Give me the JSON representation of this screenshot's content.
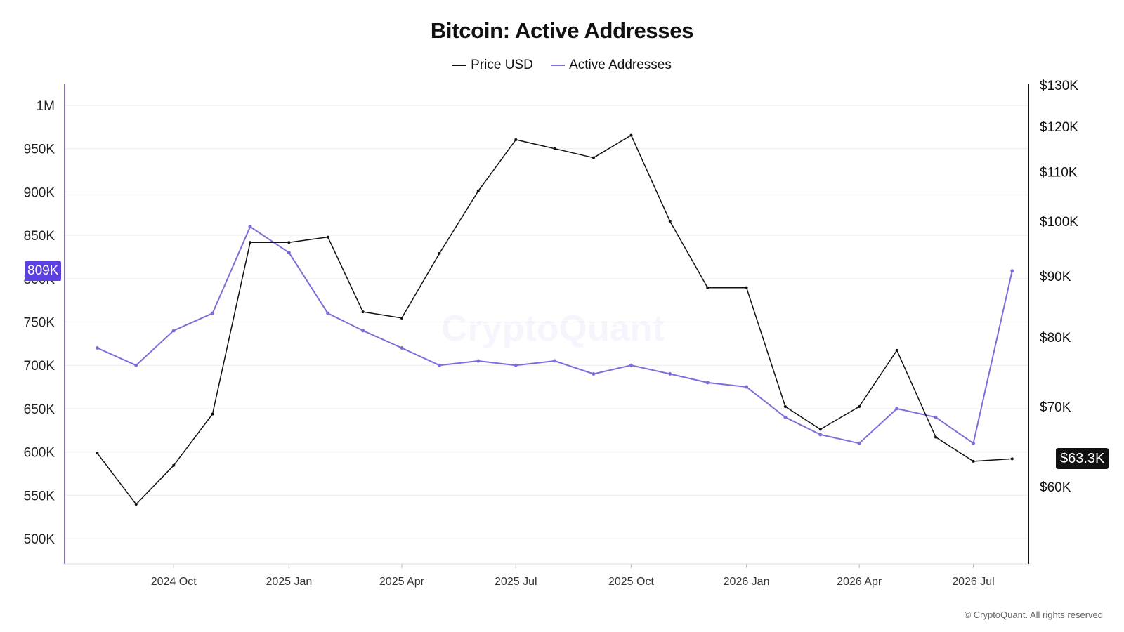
{
  "chart_data": {
    "type": "line",
    "title": "Bitcoin: Active Addresses",
    "legend_position": "top-center",
    "grid": true,
    "x": [
      "2024-08-01",
      "2024-09-01",
      "2024-10-01",
      "2024-11-01",
      "2024-12-01",
      "2025-01-01",
      "2025-02-01",
      "2025-03-01",
      "2025-04-01",
      "2025-05-01",
      "2025-06-01",
      "2025-07-01",
      "2025-08-01",
      "2025-09-01",
      "2025-10-01",
      "2025-11-01",
      "2025-12-01",
      "2026-01-01",
      "2026-02-01",
      "2026-03-01",
      "2026-04-01",
      "2026-05-01",
      "2026-06-01",
      "2026-07-01",
      "2026-08-01"
    ],
    "x_range": [
      "2024-07-06",
      "2026-08-14"
    ],
    "x_tick_labels": [
      {
        "date": "2024-10-01",
        "label": "2024 Oct"
      },
      {
        "date": "2025-01-01",
        "label": "2025 Jan"
      },
      {
        "date": "2025-04-01",
        "label": "2025 Apr"
      },
      {
        "date": "2025-07-01",
        "label": "2025 Jul"
      },
      {
        "date": "2025-10-01",
        "label": "2025 Oct"
      },
      {
        "date": "2026-01-01",
        "label": "2026 Jan"
      },
      {
        "date": "2026-04-01",
        "label": "2026 Apr"
      },
      {
        "date": "2026-07-01",
        "label": "2026 Jul"
      }
    ],
    "y_left": {
      "ticks": [
        500000,
        550000,
        600000,
        650000,
        700000,
        750000,
        800000,
        850000,
        900000,
        950000,
        1000000
      ],
      "tick_labels": [
        "500K",
        "550K",
        "600K",
        "650K",
        "700K",
        "750K",
        "800K",
        "850K",
        "900K",
        "950K",
        "1M"
      ],
      "range": [
        470000,
        1030000
      ]
    },
    "y_right": {
      "scale": "log",
      "ticks": [
        60000,
        70000,
        80000,
        90000,
        100000,
        110000,
        120000,
        130000
      ],
      "tick_labels": [
        "$60K",
        "$70K",
        "$80K",
        "$90K",
        "$100K",
        "$110K",
        "$120K",
        "$130K"
      ],
      "range": [
        52000,
        130000
      ]
    },
    "series": [
      {
        "name": "Price USD",
        "axis": "right",
        "color": "#111111",
        "values": [
          64000,
          58000,
          62500,
          69000,
          96000,
          96000,
          97000,
          84000,
          83000,
          94000,
          106000,
          117000,
          115000,
          113000,
          118000,
          100000,
          88000,
          88000,
          70000,
          67000,
          70000,
          78000,
          66000,
          63000,
          63300
        ]
      },
      {
        "name": "Active Addresses",
        "axis": "left",
        "color": "#7b6fd9",
        "values": [
          720000,
          700000,
          740000,
          760000,
          860000,
          830000,
          760000,
          740000,
          720000,
          700000,
          705000,
          700000,
          705000,
          690000,
          700000,
          690000,
          680000,
          675000,
          640000,
          620000,
          610000,
          650000,
          640000,
          610000,
          809000
        ]
      }
    ],
    "last_value_badges": {
      "active_addresses": "809K",
      "price_usd": "$63.3K"
    }
  },
  "watermark": "CryptoQuant",
  "copyright": "© CryptoQuant. All rights reserved",
  "colors": {
    "active": "#7b6fd9",
    "price": "#111111",
    "badge_left": "#5b3fe0",
    "badge_right": "#111111",
    "grid": "#ececec"
  }
}
